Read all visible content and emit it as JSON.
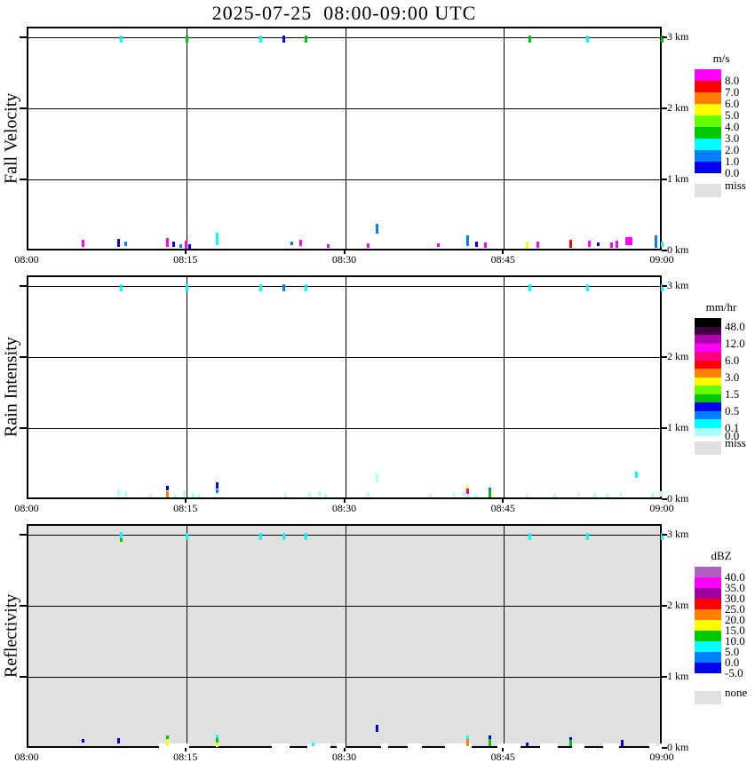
{
  "title": "2025-07-25  08:00-09:00 UTC",
  "palette": {
    "magenta": "#ff00ff",
    "red": "#ff0000",
    "orange": "#ff8000",
    "yellow": "#ffff00",
    "chartreuse": "#66ff00",
    "green": "#00c800",
    "cyan": "#00ffff",
    "dodger": "#0080ff",
    "blue": "#0000f0",
    "palecyan": "#aaffff",
    "deeppink": "#ff0080",
    "black": "#000000",
    "darkpurple": "#400040",
    "purple": "#b000b0",
    "orchid": "#b060c0",
    "darkmagenta": "#a000a0",
    "white": "#ffffff",
    "miss_gray": "#e0e0e0"
  },
  "marks_format": "[minutes_after_0800, base_height_km, bar_height_px, color_key, optional_width_px]",
  "chart_data": [
    {
      "type": "scatter",
      "title": "Fall Velocity",
      "unit": "m/s",
      "x_range_min": [
        0,
        60
      ],
      "y_range_km": [
        0,
        3.15
      ],
      "x_ticks": [
        "08:00",
        "08:15",
        "08:30",
        "08:45",
        "09:00"
      ],
      "x_tick_minutes": [
        0,
        15,
        30,
        45,
        60
      ],
      "x_gridlines_min": [
        15,
        30,
        45
      ],
      "y_ticks": [
        "3 km",
        "2 km",
        "1 km",
        "0 km"
      ],
      "y_tick_km": [
        3,
        2,
        1,
        0
      ],
      "y_gridlines_km": [
        3,
        2,
        1
      ],
      "background": "#ffffff",
      "legend": {
        "title": "m/s",
        "colors": [
          "magenta",
          "red",
          "orange",
          "yellow",
          "chartreuse",
          "green",
          "cyan",
          "dodger",
          "blue"
        ],
        "labels": [
          {
            "text": "8.0",
            "b": 1
          },
          {
            "text": "7.0",
            "b": 2
          },
          {
            "text": "6.0",
            "b": 3
          },
          {
            "text": "5.0",
            "b": 4
          },
          {
            "text": "4.0",
            "b": 5
          },
          {
            "text": "3.0",
            "b": 6
          },
          {
            "text": "2.0",
            "b": 7
          },
          {
            "text": "1.0",
            "b": 8
          },
          {
            "text": "0.0",
            "b": 9
          }
        ],
        "miss": {
          "label": "miss",
          "color": "miss_gray"
        }
      },
      "marks": [
        [
          8.8,
          2.93,
          8,
          "cyan"
        ],
        [
          15,
          2.93,
          8,
          "green"
        ],
        [
          22,
          2.93,
          8,
          "cyan"
        ],
        [
          24.2,
          2.93,
          8,
          "blue"
        ],
        [
          26.3,
          2.93,
          8,
          "green"
        ],
        [
          47.4,
          2.93,
          8,
          "green"
        ],
        [
          52.9,
          2.93,
          8,
          "cyan"
        ],
        [
          59.9,
          2.93,
          8,
          "green"
        ],
        [
          5.2,
          0.05,
          8,
          "magenta"
        ],
        [
          8.6,
          0.05,
          9,
          "blue"
        ],
        [
          9.2,
          0.06,
          5,
          "dodger"
        ],
        [
          13.2,
          0.05,
          10,
          "magenta"
        ],
        [
          13.8,
          0.05,
          6,
          "blue"
        ],
        [
          14.4,
          0.04,
          4,
          "dodger"
        ],
        [
          14.9,
          0.03,
          9,
          "magenta"
        ],
        [
          15.3,
          0.03,
          5,
          "blue"
        ],
        [
          17.9,
          0.08,
          14,
          "cyan"
        ],
        [
          24.9,
          0.07,
          4,
          "dodger"
        ],
        [
          25.8,
          0.06,
          7,
          "magenta"
        ],
        [
          28.4,
          0.04,
          4,
          "magenta"
        ],
        [
          32.1,
          0.04,
          5,
          "magenta"
        ],
        [
          33.0,
          0.24,
          11,
          "dodger"
        ],
        [
          38.8,
          0.05,
          4,
          "magenta"
        ],
        [
          41.5,
          0.06,
          12,
          "dodger"
        ],
        [
          42.4,
          0.05,
          6,
          "blue"
        ],
        [
          43.2,
          0.04,
          6,
          "magenta"
        ],
        [
          47.2,
          0.03,
          8,
          "yellow"
        ],
        [
          48.2,
          0.04,
          7,
          "magenta"
        ],
        [
          51.3,
          0.04,
          9,
          "red"
        ],
        [
          53.0,
          0.05,
          7,
          "magenta"
        ],
        [
          53.9,
          0.06,
          4,
          "blue"
        ],
        [
          55.1,
          0.04,
          6,
          "magenta"
        ],
        [
          55.6,
          0.04,
          8,
          "magenta"
        ],
        [
          56.6,
          0.07,
          9,
          "magenta",
          8
        ],
        [
          59.3,
          0.04,
          14,
          "dodger"
        ],
        [
          59.9,
          0.05,
          6,
          "cyan"
        ]
      ]
    },
    {
      "type": "scatter",
      "title": "Rain Intensity",
      "unit": "mm/hr",
      "x_range_min": [
        0,
        60
      ],
      "y_range_km": [
        0,
        3.15
      ],
      "x_ticks": [
        "08:00",
        "08:15",
        "08:30",
        "08:45",
        "09:00"
      ],
      "x_tick_minutes": [
        0,
        15,
        30,
        45,
        60
      ],
      "x_gridlines_min": [
        15,
        30,
        45
      ],
      "y_ticks": [
        "3 km",
        "2 km",
        "1 km",
        "0 km"
      ],
      "y_tick_km": [
        3,
        2,
        1,
        0
      ],
      "y_gridlines_km": [
        3,
        2,
        1
      ],
      "background": "#ffffff",
      "legend": {
        "title": "mm/hr",
        "colors": [
          "black",
          "darkpurple",
          "purple",
          "magenta",
          "deeppink",
          "red",
          "orange",
          "yellow",
          "chartreuse",
          "green",
          "blue",
          "dodger",
          "cyan",
          "palecyan"
        ],
        "labels": [
          {
            "text": "48.0",
            "b": 1
          },
          {
            "text": "12.0",
            "b": 3
          },
          {
            "text": "6.0",
            "b": 5
          },
          {
            "text": "3.0",
            "b": 7
          },
          {
            "text": "1.5",
            "b": 9
          },
          {
            "text": "0.5",
            "b": 11
          },
          {
            "text": "0.1",
            "b": 13
          },
          {
            "text": "0.0",
            "b": 14
          }
        ],
        "miss": {
          "label": "miss",
          "color": "miss_gray"
        }
      },
      "marks": [
        [
          8.8,
          2.93,
          8,
          "cyan"
        ],
        [
          15,
          2.93,
          8,
          "cyan"
        ],
        [
          22,
          2.93,
          8,
          "cyan"
        ],
        [
          24.2,
          2.93,
          8,
          "dodger"
        ],
        [
          26.3,
          2.93,
          8,
          "cyan"
        ],
        [
          47.4,
          2.93,
          8,
          "cyan"
        ],
        [
          52.9,
          2.93,
          8,
          "cyan"
        ],
        [
          59.9,
          2.93,
          8,
          "cyan"
        ],
        [
          8.6,
          0.04,
          8,
          "palecyan"
        ],
        [
          9.2,
          0.04,
          5,
          "palecyan"
        ],
        [
          11.6,
          0.03,
          4,
          "palecyan"
        ],
        [
          13.2,
          0.12,
          5,
          "blue"
        ],
        [
          13.2,
          0.03,
          7,
          "orange"
        ],
        [
          13.9,
          0.03,
          4,
          "palecyan"
        ],
        [
          14.8,
          0.04,
          6,
          "palecyan"
        ],
        [
          15.6,
          0.03,
          5,
          "palecyan"
        ],
        [
          16.1,
          0.03,
          4,
          "palecyan"
        ],
        [
          17.9,
          0.15,
          7,
          "blue"
        ],
        [
          17.9,
          0.09,
          4,
          "dodger"
        ],
        [
          24.3,
          0.03,
          4,
          "palecyan"
        ],
        [
          26.6,
          0.04,
          5,
          "palecyan"
        ],
        [
          27.5,
          0.04,
          6,
          "palecyan"
        ],
        [
          28.1,
          0.03,
          4,
          "palecyan"
        ],
        [
          32.1,
          0.04,
          5,
          "palecyan"
        ],
        [
          33.0,
          0.24,
          10,
          "palecyan"
        ],
        [
          38.0,
          0.03,
          4,
          "palecyan"
        ],
        [
          40.3,
          0.04,
          4,
          "palecyan"
        ],
        [
          41.2,
          0.04,
          5,
          "palecyan"
        ],
        [
          41.5,
          0.14,
          4,
          "yellow"
        ],
        [
          41.5,
          0.07,
          6,
          "deeppink"
        ],
        [
          41.6,
          0.02,
          4,
          "palecyan"
        ],
        [
          42.3,
          0.03,
          4,
          "palecyan"
        ],
        [
          43.6,
          0.11,
          4,
          "dodger"
        ],
        [
          43.6,
          0.03,
          8,
          "green"
        ],
        [
          47.2,
          0.03,
          4,
          "palecyan"
        ],
        [
          49.8,
          0.03,
          4,
          "palecyan"
        ],
        [
          52.0,
          0.04,
          4,
          "palecyan"
        ],
        [
          53.5,
          0.03,
          5,
          "palecyan"
        ],
        [
          54.8,
          0.03,
          4,
          "palecyan"
        ],
        [
          56.0,
          0.04,
          4,
          "palecyan"
        ],
        [
          57.5,
          0.3,
          7,
          "cyan"
        ],
        [
          59.0,
          0.03,
          5,
          "palecyan"
        ],
        [
          59.8,
          0.04,
          6,
          "palecyan"
        ]
      ]
    },
    {
      "type": "scatter",
      "title": "Reflectivity",
      "unit": "dBZ",
      "x_range_min": [
        0,
        60
      ],
      "y_range_km": [
        0,
        3.15
      ],
      "x_ticks": [
        "08:00",
        "08:15",
        "08:30",
        "08:45",
        "09:00"
      ],
      "x_tick_minutes": [
        0,
        15,
        30,
        45,
        60
      ],
      "x_gridlines_min": [
        15,
        30,
        45
      ],
      "y_ticks": [
        "3 km",
        "2 km",
        "1 km",
        "0 km"
      ],
      "y_tick_km": [
        3,
        2,
        1,
        0
      ],
      "y_gridlines_km": [
        3,
        2,
        1
      ],
      "background": "#e0e0e0",
      "legend": {
        "title": "dBZ",
        "colors": [
          "orchid",
          "magenta",
          "darkmagenta",
          "red",
          "orange",
          "yellow",
          "green",
          "cyan",
          "dodger",
          "blue"
        ],
        "labels": [
          {
            "text": "40.0",
            "b": 1
          },
          {
            "text": "35.0",
            "b": 2
          },
          {
            "text": "30.0",
            "b": 3
          },
          {
            "text": "25.0",
            "b": 4
          },
          {
            "text": "20.0",
            "b": 5
          },
          {
            "text": "15.0",
            "b": 6
          },
          {
            "text": "10.0",
            "b": 7
          },
          {
            "text": "5.0",
            "b": 8
          },
          {
            "text": "0.0",
            "b": 9
          },
          {
            "text": "-5.0",
            "b": 10
          }
        ],
        "miss": {
          "label": "none",
          "color": "miss_gray"
        }
      },
      "marks": [
        [
          12.5,
          0.0,
          5,
          "white",
          34
        ],
        [
          23.2,
          0.0,
          5,
          "white",
          20
        ],
        [
          26.5,
          0.0,
          5,
          "white",
          26
        ],
        [
          29.3,
          0.0,
          5,
          "white",
          10
        ],
        [
          33.5,
          0.0,
          5,
          "white",
          8
        ],
        [
          36.0,
          0.0,
          5,
          "white",
          16
        ],
        [
          39.5,
          0.0,
          5,
          "white",
          30
        ],
        [
          44.5,
          0.0,
          5,
          "white",
          26
        ],
        [
          48.5,
          0.0,
          5,
          "white",
          20
        ],
        [
          51.5,
          0.0,
          5,
          "white",
          14
        ],
        [
          54.5,
          0.0,
          5,
          "white",
          18
        ],
        [
          58.8,
          0.0,
          5,
          "white",
          14
        ],
        [
          8.8,
          2.9,
          5,
          "green"
        ],
        [
          8.8,
          2.95,
          7,
          "cyan"
        ],
        [
          15,
          2.93,
          8,
          "cyan"
        ],
        [
          22,
          2.93,
          8,
          "cyan"
        ],
        [
          24.2,
          2.93,
          8,
          "cyan"
        ],
        [
          26.3,
          2.93,
          8,
          "cyan"
        ],
        [
          47.4,
          2.93,
          8,
          "cyan"
        ],
        [
          52.9,
          2.93,
          8,
          "cyan"
        ],
        [
          59.9,
          2.93,
          8,
          "cyan"
        ],
        [
          5.2,
          0.07,
          4,
          "blue"
        ],
        [
          8.6,
          0.06,
          6,
          "blue"
        ],
        [
          13.2,
          0.12,
          4,
          "green"
        ],
        [
          13.2,
          0.02,
          8,
          "yellow"
        ],
        [
          17.9,
          0.14,
          4,
          "cyan"
        ],
        [
          17.9,
          0.08,
          5,
          "green"
        ],
        [
          17.9,
          0.01,
          5,
          "yellow"
        ],
        [
          26.9,
          0.02,
          4,
          "cyan"
        ],
        [
          33.0,
          0.22,
          8,
          "blue"
        ],
        [
          41.5,
          0.13,
          4,
          "cyan"
        ],
        [
          41.5,
          0.02,
          8,
          "orange"
        ],
        [
          43.6,
          0.12,
          4,
          "blue"
        ],
        [
          43.6,
          0.02,
          8,
          "green"
        ],
        [
          47.2,
          0.02,
          4,
          "blue"
        ],
        [
          51.3,
          0.1,
          4,
          "blue"
        ],
        [
          51.3,
          0.02,
          7,
          "green"
        ],
        [
          56.1,
          0.02,
          7,
          "blue"
        ],
        [
          59.5,
          0.02,
          4,
          "palecyan"
        ]
      ]
    }
  ]
}
